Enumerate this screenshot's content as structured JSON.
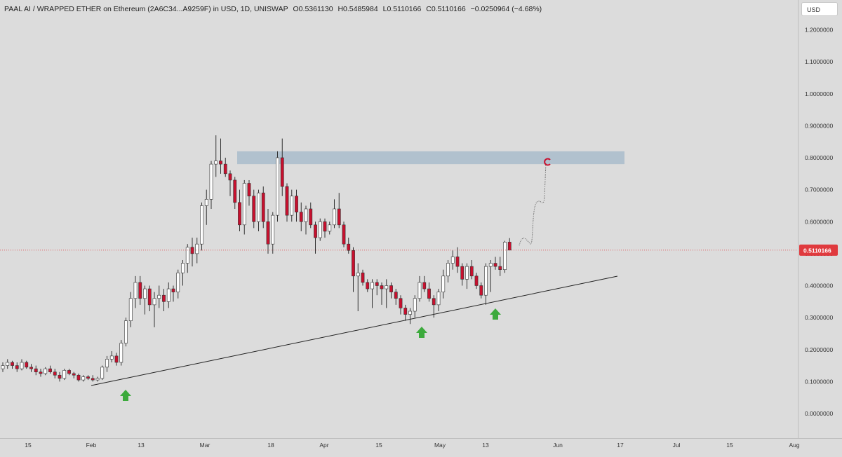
{
  "header": {
    "pair": "PAAL AI / WRAPPED ETHER on Ethereum (2A6C34...A9259F) in USD, 1D, UNISWAP",
    "open": "O0.5361130",
    "high": "H0.5485984",
    "low": "L0.5110166",
    "close": "C0.5110166",
    "change": "−0.0250964 (−4.68%)"
  },
  "currency_button": "USD",
  "current_price_label": "0.5110166",
  "colors": {
    "background": "#dcdcdc",
    "up_candle": "#ffffff",
    "down_candle": "#c8102e",
    "wick": "#333333",
    "zone": "#a9bccb",
    "arrow": "#3caa3c",
    "price_tag": "#e03a3e",
    "trendline": "#222222"
  },
  "chart_data": {
    "type": "candlestick",
    "y_ticks": [
      "1.2000000",
      "1.1000000",
      "1.0000000",
      "0.9000000",
      "0.8000000",
      "0.7000000",
      "0.6000000",
      "0.5000000",
      "0.4000000",
      "0.3000000",
      "0.2000000",
      "0.1000000",
      "0.0000000"
    ],
    "ylim": [
      0,
      1.2
    ],
    "x_ticks": [
      "15",
      "Feb",
      "13",
      "Mar",
      "18",
      "Apr",
      "15",
      "May",
      "13",
      "Jun",
      "17",
      "Jul",
      "15",
      "Aug"
    ],
    "current_price": 0.5110166,
    "candles": [
      [
        0.14,
        0.16,
        0.13,
        0.15
      ],
      [
        0.15,
        0.17,
        0.14,
        0.16
      ],
      [
        0.16,
        0.165,
        0.14,
        0.15
      ],
      [
        0.15,
        0.16,
        0.13,
        0.14
      ],
      [
        0.14,
        0.17,
        0.135,
        0.16
      ],
      [
        0.16,
        0.165,
        0.14,
        0.145
      ],
      [
        0.145,
        0.155,
        0.13,
        0.14
      ],
      [
        0.14,
        0.15,
        0.12,
        0.13
      ],
      [
        0.13,
        0.14,
        0.115,
        0.125
      ],
      [
        0.125,
        0.145,
        0.12,
        0.14
      ],
      [
        0.14,
        0.15,
        0.125,
        0.13
      ],
      [
        0.13,
        0.14,
        0.11,
        0.12
      ],
      [
        0.12,
        0.13,
        0.1,
        0.11
      ],
      [
        0.11,
        0.14,
        0.105,
        0.135
      ],
      [
        0.135,
        0.14,
        0.12,
        0.125
      ],
      [
        0.125,
        0.13,
        0.11,
        0.12
      ],
      [
        0.12,
        0.125,
        0.1,
        0.105
      ],
      [
        0.105,
        0.12,
        0.1,
        0.115
      ],
      [
        0.115,
        0.12,
        0.105,
        0.11
      ],
      [
        0.11,
        0.12,
        0.1,
        0.105
      ],
      [
        0.105,
        0.115,
        0.1,
        0.11
      ],
      [
        0.11,
        0.15,
        0.105,
        0.145
      ],
      [
        0.145,
        0.18,
        0.13,
        0.17
      ],
      [
        0.17,
        0.195,
        0.16,
        0.18
      ],
      [
        0.18,
        0.19,
        0.15,
        0.16
      ],
      [
        0.16,
        0.23,
        0.15,
        0.22
      ],
      [
        0.22,
        0.3,
        0.21,
        0.29
      ],
      [
        0.29,
        0.38,
        0.27,
        0.36
      ],
      [
        0.36,
        0.43,
        0.33,
        0.41
      ],
      [
        0.41,
        0.43,
        0.34,
        0.36
      ],
      [
        0.36,
        0.4,
        0.31,
        0.39
      ],
      [
        0.39,
        0.4,
        0.32,
        0.34
      ],
      [
        0.34,
        0.38,
        0.27,
        0.36
      ],
      [
        0.36,
        0.4,
        0.33,
        0.37
      ],
      [
        0.37,
        0.39,
        0.32,
        0.35
      ],
      [
        0.35,
        0.41,
        0.33,
        0.39
      ],
      [
        0.39,
        0.4,
        0.35,
        0.38
      ],
      [
        0.38,
        0.45,
        0.36,
        0.44
      ],
      [
        0.44,
        0.48,
        0.4,
        0.47
      ],
      [
        0.47,
        0.53,
        0.44,
        0.52
      ],
      [
        0.52,
        0.55,
        0.46,
        0.5
      ],
      [
        0.5,
        0.55,
        0.47,
        0.53
      ],
      [
        0.53,
        0.66,
        0.51,
        0.65
      ],
      [
        0.65,
        0.7,
        0.59,
        0.67
      ],
      [
        0.67,
        0.79,
        0.64,
        0.78
      ],
      [
        0.78,
        0.87,
        0.74,
        0.79
      ],
      [
        0.79,
        0.86,
        0.75,
        0.78
      ],
      [
        0.78,
        0.8,
        0.74,
        0.75
      ],
      [
        0.75,
        0.76,
        0.68,
        0.73
      ],
      [
        0.73,
        0.74,
        0.64,
        0.66
      ],
      [
        0.66,
        0.7,
        0.57,
        0.59
      ],
      [
        0.59,
        0.73,
        0.56,
        0.72
      ],
      [
        0.72,
        0.73,
        0.65,
        0.68
      ],
      [
        0.68,
        0.7,
        0.58,
        0.6
      ],
      [
        0.6,
        0.7,
        0.57,
        0.69
      ],
      [
        0.69,
        0.71,
        0.58,
        0.6
      ],
      [
        0.6,
        0.64,
        0.5,
        0.53
      ],
      [
        0.53,
        0.63,
        0.5,
        0.62
      ],
      [
        0.62,
        0.82,
        0.6,
        0.8
      ],
      [
        0.8,
        0.86,
        0.68,
        0.71
      ],
      [
        0.71,
        0.72,
        0.6,
        0.62
      ],
      [
        0.62,
        0.7,
        0.6,
        0.68
      ],
      [
        0.68,
        0.7,
        0.6,
        0.63
      ],
      [
        0.63,
        0.66,
        0.57,
        0.6
      ],
      [
        0.6,
        0.65,
        0.56,
        0.64
      ],
      [
        0.64,
        0.66,
        0.58,
        0.59
      ],
      [
        0.59,
        0.6,
        0.5,
        0.55
      ],
      [
        0.55,
        0.61,
        0.54,
        0.6
      ],
      [
        0.6,
        0.61,
        0.55,
        0.57
      ],
      [
        0.57,
        0.6,
        0.56,
        0.59
      ],
      [
        0.59,
        0.67,
        0.58,
        0.64
      ],
      [
        0.64,
        0.69,
        0.58,
        0.59
      ],
      [
        0.59,
        0.6,
        0.52,
        0.53
      ],
      [
        0.53,
        0.55,
        0.5,
        0.51
      ],
      [
        0.51,
        0.52,
        0.38,
        0.43
      ],
      [
        0.43,
        0.47,
        0.32,
        0.44
      ],
      [
        0.44,
        0.45,
        0.4,
        0.41
      ],
      [
        0.41,
        0.42,
        0.38,
        0.39
      ],
      [
        0.39,
        0.42,
        0.33,
        0.41
      ],
      [
        0.41,
        0.42,
        0.37,
        0.4
      ],
      [
        0.4,
        0.41,
        0.34,
        0.39
      ],
      [
        0.39,
        0.42,
        0.33,
        0.4
      ],
      [
        0.4,
        0.41,
        0.36,
        0.38
      ],
      [
        0.38,
        0.39,
        0.34,
        0.36
      ],
      [
        0.36,
        0.37,
        0.31,
        0.33
      ],
      [
        0.33,
        0.34,
        0.29,
        0.31
      ],
      [
        0.31,
        0.33,
        0.28,
        0.32
      ],
      [
        0.32,
        0.37,
        0.3,
        0.36
      ],
      [
        0.36,
        0.43,
        0.35,
        0.41
      ],
      [
        0.41,
        0.43,
        0.38,
        0.39
      ],
      [
        0.39,
        0.41,
        0.35,
        0.36
      ],
      [
        0.36,
        0.37,
        0.3,
        0.34
      ],
      [
        0.34,
        0.39,
        0.32,
        0.38
      ],
      [
        0.38,
        0.45,
        0.36,
        0.43
      ],
      [
        0.43,
        0.48,
        0.41,
        0.47
      ],
      [
        0.47,
        0.51,
        0.45,
        0.49
      ],
      [
        0.49,
        0.52,
        0.44,
        0.46
      ],
      [
        0.46,
        0.47,
        0.4,
        0.42
      ],
      [
        0.42,
        0.47,
        0.39,
        0.46
      ],
      [
        0.46,
        0.48,
        0.42,
        0.43
      ],
      [
        0.43,
        0.44,
        0.39,
        0.4
      ],
      [
        0.4,
        0.41,
        0.36,
        0.37
      ],
      [
        0.37,
        0.47,
        0.34,
        0.46
      ],
      [
        0.46,
        0.48,
        0.38,
        0.47
      ],
      [
        0.47,
        0.49,
        0.45,
        0.46
      ],
      [
        0.46,
        0.49,
        0.43,
        0.45
      ],
      [
        0.45,
        0.54,
        0.44,
        0.536
      ],
      [
        0.536113,
        0.5485984,
        0.5110166,
        0.5110166
      ]
    ],
    "resistance_zone": [
      0.78,
      0.82
    ],
    "trendline": [
      [
        0.09,
        0.43
      ]
    ]
  }
}
